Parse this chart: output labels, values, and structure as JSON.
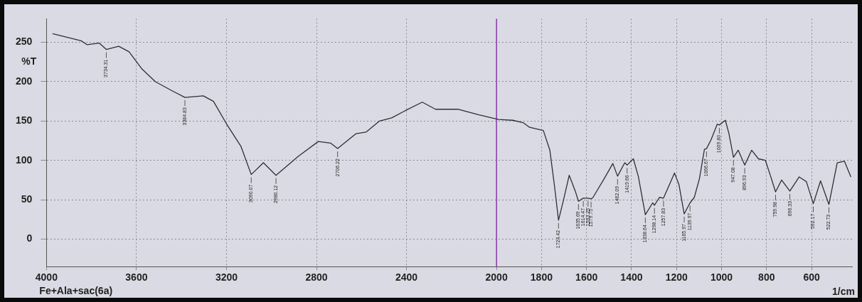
{
  "chart_data": {
    "type": "line",
    "xlabel": "1/cm",
    "ylabel": "%T",
    "x": [
      3973,
      3846,
      3819,
      3765,
      3734.31,
      3679,
      3633,
      3575,
      3516,
      3439,
      3384.83,
      3303,
      3258,
      3199,
      3136,
      3090.07,
      3036,
      2980.12,
      2882,
      2792,
      2738,
      2706.22,
      2624,
      2579,
      2520,
      2466,
      2407,
      2330,
      2271,
      2172,
      2081,
      1991,
      1928,
      1882,
      1853,
      1792,
      1763,
      1743,
      1724.42,
      1702,
      1677,
      1650,
      1635.69,
      1614.47,
      1593.25,
      1579.75,
      1571,
      1521,
      1483,
      1462.09,
      1430,
      1419.66,
      1392,
      1370,
      1338.64,
      1306,
      1298.14,
      1276,
      1257.83,
      1209,
      1189,
      1165.97,
      1139.97,
      1121,
      1098,
      1076,
      1066.67,
      1047,
      1019,
      1009.8,
      983,
      967,
      947.08,
      926,
      896.93,
      866,
      836,
      805,
      782,
      759.98,
      733,
      696.33,
      655,
      623,
      592.17,
      560,
      522.73,
      486,
      454,
      425
    ],
    "series": [
      {
        "color": "#2e2e34",
        "values": [
          261,
          252,
          247,
          249,
          241,
          245,
          238,
          216,
          200,
          188,
          180,
          182,
          175,
          146,
          118,
          82,
          97,
          81,
          105,
          124,
          122,
          115,
          134,
          136,
          150,
          154,
          163,
          174,
          165,
          165,
          158,
          152,
          151,
          148,
          142,
          138,
          113,
          69,
          24,
          50,
          81,
          61,
          48,
          52,
          52,
          51,
          53,
          77,
          96,
          80,
          97,
          94,
          102,
          80,
          31,
          46,
          43,
          53,
          52,
          84,
          69,
          32,
          46,
          53,
          77,
          114,
          115,
          126,
          146,
          145,
          151,
          134,
          104,
          113,
          94,
          113,
          102,
          100,
          80,
          60,
          75,
          61,
          79,
          73,
          45,
          74,
          44,
          97,
          99,
          79
        ]
      }
    ],
    "xlim": [
      4000,
      420
    ],
    "xticks": [
      4000,
      3600,
      3200,
      2800,
      2400,
      2000,
      1800,
      1600,
      1400,
      1200,
      1000,
      800,
      600
    ],
    "ylim": [
      -35,
      280
    ],
    "yticks": [
      0,
      50,
      100,
      150,
      200,
      250
    ],
    "grid": true,
    "legend": false,
    "marker": "none",
    "line_style": "solid",
    "ref_lines": [
      {
        "axis": "x",
        "value": 2000,
        "color": "#8a3aa8"
      }
    ],
    "annotations": [
      "Fe+Ala+sac(6a)",
      {
        "text": "3734.31",
        "x": 3734.31,
        "y": 241
      },
      {
        "text": "3384.83",
        "x": 3384.83,
        "y": 180
      },
      {
        "text": "3090.07",
        "x": 3090.07,
        "y": 82
      },
      {
        "text": "2980.12",
        "x": 2980.12,
        "y": 81
      },
      {
        "text": "2706.22",
        "x": 2706.22,
        "y": 115
      },
      {
        "text": "1724.42",
        "x": 1724.42,
        "y": 24
      },
      {
        "text": "1635.69",
        "x": 1635.69,
        "y": 48
      },
      {
        "text": "1614.47",
        "x": 1614.47,
        "y": 52
      },
      {
        "text": "1593.25",
        "x": 1593.25,
        "y": 52
      },
      {
        "text": "1579.75",
        "x": 1579.75,
        "y": 51
      },
      {
        "text": "1462.09",
        "x": 1462.09,
        "y": 80
      },
      {
        "text": "1419.66",
        "x": 1419.66,
        "y": 94
      },
      {
        "text": "1338.64",
        "x": 1338.64,
        "y": 31
      },
      {
        "text": "1298.14",
        "x": 1298.14,
        "y": 43
      },
      {
        "text": "1257.83",
        "x": 1257.83,
        "y": 52
      },
      {
        "text": "1165.97",
        "x": 1165.97,
        "y": 32
      },
      {
        "text": "1139.97",
        "x": 1139.97,
        "y": 46
      },
      {
        "text": "1066.67",
        "x": 1066.67,
        "y": 115
      },
      {
        "text": "1009.80",
        "x": 1009.8,
        "y": 145
      },
      {
        "text": "947.08",
        "x": 947.08,
        "y": 104
      },
      {
        "text": "896.93",
        "x": 896.93,
        "y": 94
      },
      {
        "text": "759.98",
        "x": 759.98,
        "y": 60
      },
      {
        "text": "696.33",
        "x": 696.33,
        "y": 61
      },
      {
        "text": "592.17",
        "x": 592.17,
        "y": 45
      },
      {
        "text": "522.73",
        "x": 522.73,
        "y": 44
      }
    ]
  }
}
